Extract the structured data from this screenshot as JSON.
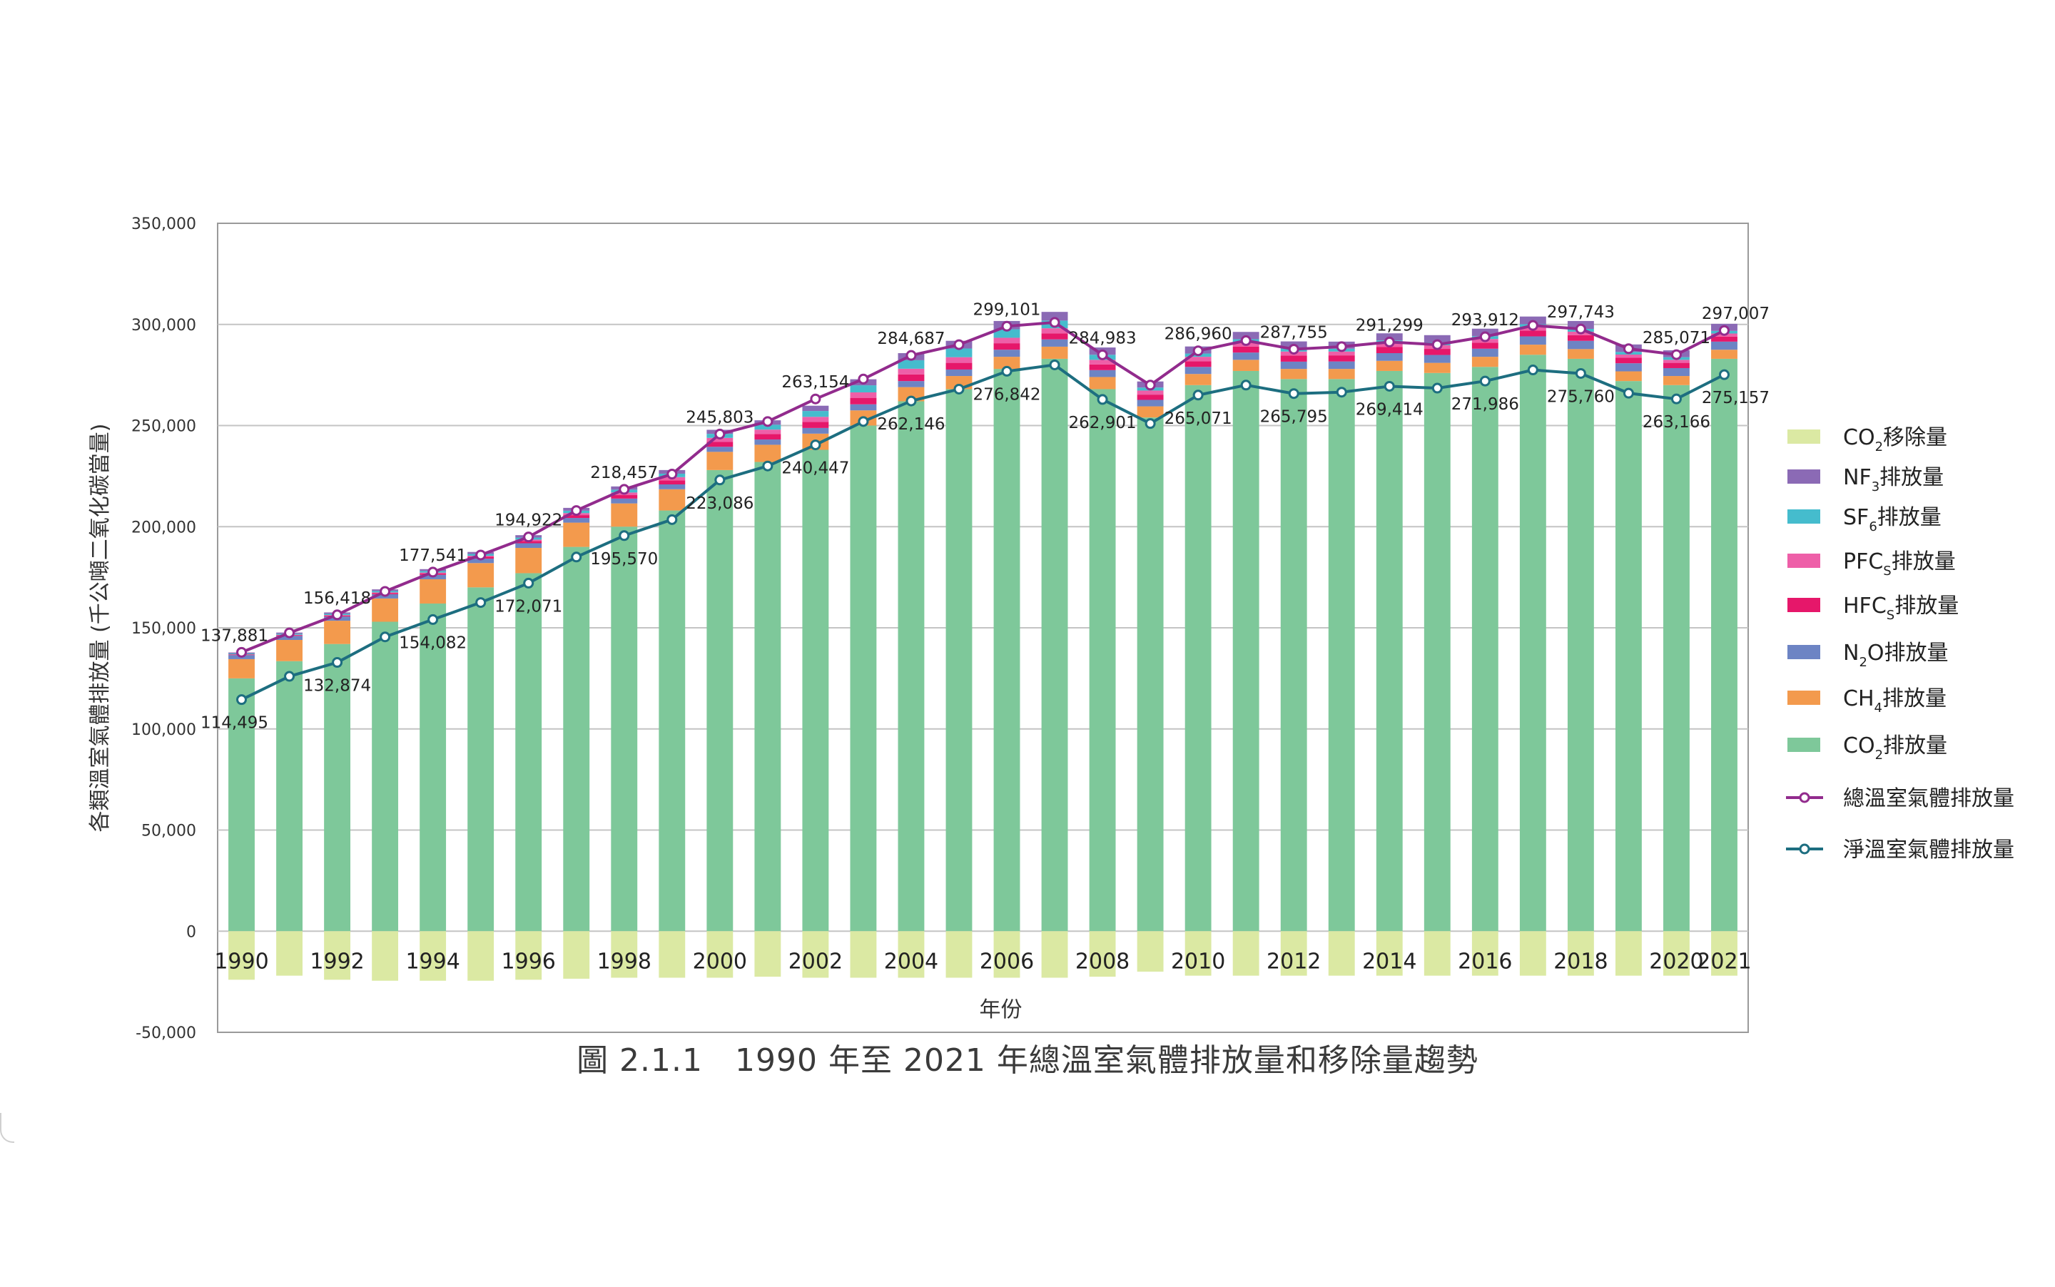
{
  "chart_data": {
    "type": "bar",
    "stacked": true,
    "title": "圖 2.1.1　1990 年至 2021 年總溫室氣體排放量和移除量趨勢",
    "xlabel": "年份",
    "ylabel": "各類溫室氣體排放量 (千公噸二氧化碳當量)",
    "ylim": [
      -50000,
      350000
    ],
    "yticks": [
      "-50,000",
      "0",
      "50,000",
      "100,000",
      "150,000",
      "200,000",
      "250,000",
      "300,000",
      "350,000"
    ],
    "grid": true,
    "legend_position": "right",
    "categories": [
      1990,
      1991,
      1992,
      1993,
      1994,
      1995,
      1996,
      1997,
      1998,
      1999,
      2000,
      2001,
      2002,
      2003,
      2004,
      2005,
      2006,
      2007,
      2008,
      2009,
      2010,
      2011,
      2012,
      2013,
      2014,
      2015,
      2016,
      2017,
      2018,
      2019,
      2020,
      2021
    ],
    "xtick_labels": [
      "1990",
      "",
      "1992",
      "",
      "1994",
      "",
      "1996",
      "",
      "1998",
      "",
      "2000",
      "",
      "2002",
      "",
      "2004",
      "",
      "2006",
      "",
      "2008",
      "",
      "2010",
      "",
      "2012",
      "",
      "2014",
      "",
      "2016",
      "",
      "2018",
      "",
      "2020",
      "2021"
    ],
    "series": [
      {
        "name": "CO2排放量",
        "kind": "bar",
        "color": "#7ec89a",
        "values": [
          125000,
          133500,
          142000,
          153000,
          162000,
          170000,
          177000,
          190000,
          200000,
          208000,
          228000,
          232000,
          238000,
          250000,
          262000,
          268000,
          278000,
          283000,
          268000,
          254000,
          270000,
          277000,
          273000,
          273000,
          277000,
          276000,
          279000,
          285000,
          283000,
          272000,
          270000,
          283000
        ]
      },
      {
        "name": "CH4排放量",
        "kind": "bar",
        "color": "#f39a4d",
        "values": [
          9500,
          10500,
          11500,
          11500,
          12000,
          12000,
          12500,
          12000,
          11500,
          10500,
          9000,
          8500,
          8000,
          7500,
          7000,
          6500,
          6000,
          6000,
          6000,
          5500,
          5500,
          5500,
          5000,
          5000,
          5000,
          5000,
          5000,
          5000,
          4800,
          4800,
          4500,
          4500
        ]
      },
      {
        "name": "N2O排放量",
        "kind": "bar",
        "color": "#6d84c4",
        "values": [
          2000,
          2000,
          2100,
          2100,
          2200,
          2200,
          2300,
          2300,
          2400,
          2400,
          2500,
          2600,
          2800,
          3000,
          3000,
          3200,
          3500,
          3600,
          3400,
          3200,
          3500,
          3600,
          3600,
          3700,
          3800,
          3900,
          4000,
          4100,
          4100,
          4000,
          3900,
          4000
        ]
      },
      {
        "name": "HFCS排放量",
        "kind": "bar",
        "color": "#e6176a",
        "values": [
          300,
          400,
          500,
          600,
          700,
          900,
          1100,
          1400,
          1700,
          2000,
          2400,
          2700,
          3000,
          3200,
          3300,
          3300,
          3200,
          3000,
          2800,
          2600,
          2800,
          2900,
          3000,
          3000,
          3000,
          3000,
          3000,
          2900,
          2800,
          2700,
          2600,
          2500
        ]
      },
      {
        "name": "PFCS排放量",
        "kind": "bar",
        "color": "#ee5fa8",
        "values": [
          100,
          150,
          200,
          300,
          400,
          500,
          700,
          1000,
          1300,
          1600,
          2000,
          2200,
          2500,
          2700,
          2800,
          2800,
          2700,
          2500,
          2300,
          2000,
          2200,
          2100,
          2000,
          1900,
          1900,
          1800,
          1800,
          1700,
          1700,
          1600,
          1500,
          1500
        ]
      },
      {
        "name": "SF6排放量",
        "kind": "bar",
        "color": "#45bccd",
        "values": [
          400,
          500,
          600,
          700,
          800,
          900,
          1000,
          1200,
          1400,
          1700,
          2000,
          2400,
          2900,
          3500,
          4200,
          4300,
          4200,
          3800,
          2500,
          1500,
          1600,
          1600,
          1500,
          1400,
          1400,
          1400,
          1400,
          1400,
          1400,
          1300,
          1300,
          1300
        ]
      },
      {
        "name": "NF3排放量",
        "kind": "bar",
        "color": "#8b6ab5",
        "values": [
          500,
          600,
          700,
          800,
          900,
          1000,
          1200,
          1400,
          1600,
          1800,
          2000,
          2200,
          2600,
          3000,
          3500,
          3800,
          4100,
          4300,
          3600,
          3000,
          3500,
          3600,
          3500,
          3500,
          3500,
          3600,
          3700,
          3800,
          3900,
          3700,
          3400,
          3500
        ]
      },
      {
        "name": "CO2移除量",
        "kind": "bar",
        "color": "#dbe9a3",
        "values": [
          -24000,
          -22000,
          -24000,
          -24500,
          -24500,
          -24500,
          -24000,
          -23500,
          -23000,
          -23000,
          -23000,
          -22500,
          -23000,
          -23000,
          -23000,
          -23000,
          -23000,
          -23000,
          -22500,
          -20000,
          -22000,
          -22000,
          -22000,
          -22000,
          -22000,
          -22000,
          -22000,
          -22000,
          -22000,
          -22000,
          -22000,
          -22000
        ]
      },
      {
        "name": "總溫室氣體排放量",
        "kind": "line",
        "color": "#922b8d",
        "values": [
          137881,
          147500,
          156418,
          168000,
          177541,
          186000,
          194922,
          208000,
          218457,
          226000,
          245803,
          252000,
          263154,
          273000,
          284687,
          290000,
          299101,
          301000,
          284983,
          270000,
          286960,
          292000,
          287755,
          289000,
          291299,
          290000,
          293912,
          299500,
          297743,
          288000,
          285071,
          297007
        ]
      },
      {
        "name": "淨溫室氣體排放量",
        "kind": "line",
        "color": "#1d6e80",
        "values": [
          114495,
          126000,
          132874,
          145500,
          154082,
          162500,
          172071,
          185000,
          195570,
          203500,
          223086,
          230000,
          240447,
          252000,
          262146,
          268000,
          276842,
          280000,
          262901,
          251000,
          265071,
          270000,
          265795,
          266500,
          269414,
          268500,
          271986,
          277500,
          275760,
          266000,
          263166,
          275157
        ]
      }
    ],
    "point_labels": [
      {
        "series": "總溫室氣體排放量",
        "index": 0,
        "text": "137,881"
      },
      {
        "series": "總溫室氣體排放量",
        "index": 2,
        "text": "156,418"
      },
      {
        "series": "總溫室氣體排放量",
        "index": 4,
        "text": "177,541"
      },
      {
        "series": "總溫室氣體排放量",
        "index": 6,
        "text": "194,922"
      },
      {
        "series": "總溫室氣體排放量",
        "index": 8,
        "text": "218,457"
      },
      {
        "series": "總溫室氣體排放量",
        "index": 10,
        "text": "245,803"
      },
      {
        "series": "總溫室氣體排放量",
        "index": 12,
        "text": "263,154"
      },
      {
        "series": "總溫室氣體排放量",
        "index": 14,
        "text": "284,687"
      },
      {
        "series": "總溫室氣體排放量",
        "index": 16,
        "text": "299,101"
      },
      {
        "series": "總溫室氣體排放量",
        "index": 18,
        "text": "284,983"
      },
      {
        "series": "總溫室氣體排放量",
        "index": 20,
        "text": "286,960"
      },
      {
        "series": "總溫室氣體排放量",
        "index": 22,
        "text": "287,755"
      },
      {
        "series": "總溫室氣體排放量",
        "index": 24,
        "text": "291,299"
      },
      {
        "series": "總溫室氣體排放量",
        "index": 26,
        "text": "293,912"
      },
      {
        "series": "總溫室氣體排放量",
        "index": 28,
        "text": "297,743"
      },
      {
        "series": "總溫室氣體排放量",
        "index": 30,
        "text": "285,071"
      },
      {
        "series": "總溫室氣體排放量",
        "index": 31,
        "text": "297,007"
      },
      {
        "series": "淨溫室氣體排放量",
        "index": 0,
        "text": "114,495"
      },
      {
        "series": "淨溫室氣體排放量",
        "index": 2,
        "text": "132,874"
      },
      {
        "series": "淨溫室氣體排放量",
        "index": 4,
        "text": "154,082"
      },
      {
        "series": "淨溫室氣體排放量",
        "index": 6,
        "text": "172,071"
      },
      {
        "series": "淨溫室氣體排放量",
        "index": 8,
        "text": "195,570"
      },
      {
        "series": "淨溫室氣體排放量",
        "index": 10,
        "text": "223,086"
      },
      {
        "series": "淨溫室氣體排放量",
        "index": 12,
        "text": "240,447"
      },
      {
        "series": "淨溫室氣體排放量",
        "index": 14,
        "text": "262,146"
      },
      {
        "series": "淨溫室氣體排放量",
        "index": 16,
        "text": "276,842"
      },
      {
        "series": "淨溫室氣體排放量",
        "index": 18,
        "text": "262,901"
      },
      {
        "series": "淨溫室氣體排放量",
        "index": 20,
        "text": "265,071"
      },
      {
        "series": "淨溫室氣體排放量",
        "index": 22,
        "text": "265,795"
      },
      {
        "series": "淨溫室氣體排放量",
        "index": 24,
        "text": "269,414"
      },
      {
        "series": "淨溫室氣體排放量",
        "index": 26,
        "text": "271,986"
      },
      {
        "series": "淨溫室氣體排放量",
        "index": 28,
        "text": "275,760"
      },
      {
        "series": "淨溫室氣體排放量",
        "index": 30,
        "text": "263,166"
      },
      {
        "series": "淨溫室氣體排放量",
        "index": 31,
        "text": "275,157"
      }
    ],
    "legend": [
      {
        "base": "CO",
        "sub": "2",
        "suffix": "移除量",
        "kind": "bar",
        "color": "#dbe9a3"
      },
      {
        "base": "NF",
        "sub": "3",
        "suffix": "排放量",
        "kind": "bar",
        "color": "#8b6ab5"
      },
      {
        "base": "SF",
        "sub": "6",
        "suffix": "排放量",
        "kind": "bar",
        "color": "#45bccd"
      },
      {
        "base": "PFC",
        "sub": "S",
        "suffix": "排放量",
        "kind": "bar",
        "color": "#ee5fa8"
      },
      {
        "base": "HFC",
        "sub": "S",
        "suffix": "排放量",
        "kind": "bar",
        "color": "#e6176a"
      },
      {
        "base": "N",
        "sub": "2",
        "suffix": "O排放量",
        "kind": "bar",
        "color": "#6d84c4"
      },
      {
        "base": "CH",
        "sub": "4",
        "suffix": "排放量",
        "kind": "bar",
        "color": "#f39a4d"
      },
      {
        "base": "CO",
        "sub": "2",
        "suffix": "排放量",
        "kind": "bar",
        "color": "#7ec89a"
      },
      {
        "base": "總溫室氣體排放量",
        "sub": "",
        "suffix": "",
        "kind": "line",
        "color": "#922b8d"
      },
      {
        "base": "淨溫室氣體排放量",
        "sub": "",
        "suffix": "",
        "kind": "line",
        "color": "#1d6e80"
      }
    ]
  }
}
